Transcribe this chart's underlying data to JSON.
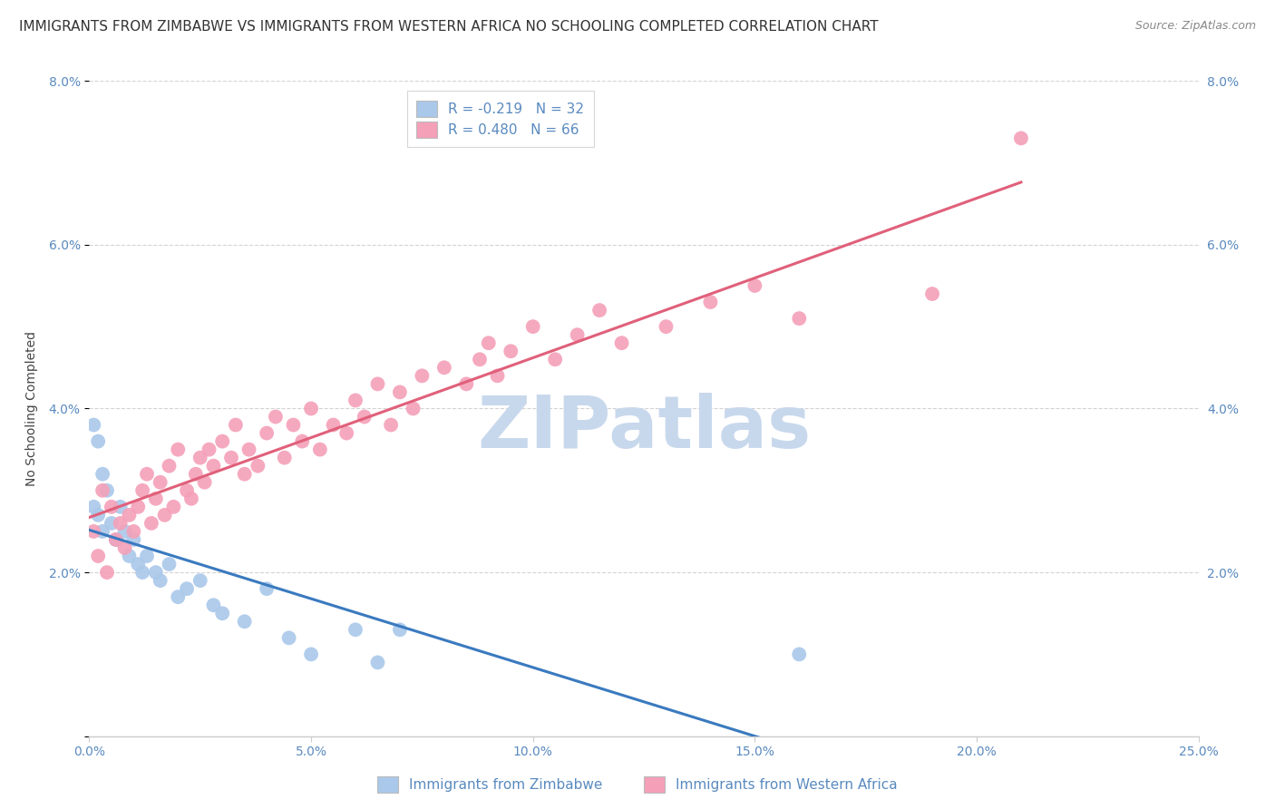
{
  "title": "IMMIGRANTS FROM ZIMBABWE VS IMMIGRANTS FROM WESTERN AFRICA NO SCHOOLING COMPLETED CORRELATION CHART",
  "source": "Source: ZipAtlas.com",
  "ylabel": "No Schooling Completed",
  "xlim": [
    0.0,
    0.25
  ],
  "ylim": [
    0.0,
    0.08
  ],
  "xticks": [
    0.0,
    0.05,
    0.1,
    0.15,
    0.2,
    0.25
  ],
  "yticks": [
    0.0,
    0.02,
    0.04,
    0.06,
    0.08
  ],
  "xtick_labels": [
    "0.0%",
    "5.0%",
    "10.0%",
    "15.0%",
    "20.0%",
    "25.0%"
  ],
  "ytick_labels": [
    "",
    "2.0%",
    "4.0%",
    "6.0%",
    "8.0%"
  ],
  "series": [
    {
      "label": "Immigrants from Zimbabwe",
      "R": -0.219,
      "N": 32,
      "color": "#aac8ea",
      "line_color": "#3a7abf",
      "line_dash": "solid",
      "line_end_dash": true,
      "x": [
        0.001,
        0.002,
        0.003,
        0.004,
        0.005,
        0.006,
        0.007,
        0.008,
        0.009,
        0.01,
        0.011,
        0.012,
        0.013,
        0.015,
        0.016,
        0.018,
        0.02,
        0.022,
        0.025,
        0.028,
        0.03,
        0.035,
        0.04,
        0.045,
        0.05,
        0.06,
        0.065,
        0.07,
        0.001,
        0.002,
        0.003,
        0.16
      ],
      "y": [
        0.028,
        0.027,
        0.025,
        0.03,
        0.026,
        0.024,
        0.028,
        0.025,
        0.022,
        0.024,
        0.021,
        0.02,
        0.022,
        0.02,
        0.019,
        0.021,
        0.017,
        0.018,
        0.019,
        0.016,
        0.015,
        0.014,
        0.018,
        0.012,
        0.01,
        0.013,
        0.009,
        0.013,
        0.038,
        0.036,
        0.032,
        0.01
      ]
    },
    {
      "label": "Immigrants from Western Africa",
      "R": 0.48,
      "N": 66,
      "color": "#f4a0b8",
      "line_color": "#e0607a",
      "x": [
        0.001,
        0.002,
        0.003,
        0.004,
        0.005,
        0.006,
        0.007,
        0.008,
        0.009,
        0.01,
        0.011,
        0.012,
        0.013,
        0.014,
        0.015,
        0.016,
        0.017,
        0.018,
        0.019,
        0.02,
        0.022,
        0.023,
        0.024,
        0.025,
        0.026,
        0.027,
        0.028,
        0.03,
        0.032,
        0.033,
        0.035,
        0.036,
        0.038,
        0.04,
        0.042,
        0.044,
        0.046,
        0.048,
        0.05,
        0.052,
        0.055,
        0.058,
        0.06,
        0.062,
        0.065,
        0.068,
        0.07,
        0.073,
        0.075,
        0.08,
        0.085,
        0.088,
        0.09,
        0.092,
        0.095,
        0.1,
        0.105,
        0.11,
        0.115,
        0.12,
        0.13,
        0.14,
        0.15,
        0.16,
        0.19,
        0.21
      ],
      "y": [
        0.025,
        0.022,
        0.03,
        0.02,
        0.028,
        0.024,
        0.026,
        0.023,
        0.027,
        0.025,
        0.028,
        0.03,
        0.032,
        0.026,
        0.029,
        0.031,
        0.027,
        0.033,
        0.028,
        0.035,
        0.03,
        0.029,
        0.032,
        0.034,
        0.031,
        0.035,
        0.033,
        0.036,
        0.034,
        0.038,
        0.032,
        0.035,
        0.033,
        0.037,
        0.039,
        0.034,
        0.038,
        0.036,
        0.04,
        0.035,
        0.038,
        0.037,
        0.041,
        0.039,
        0.043,
        0.038,
        0.042,
        0.04,
        0.044,
        0.045,
        0.043,
        0.046,
        0.048,
        0.044,
        0.047,
        0.05,
        0.046,
        0.049,
        0.052,
        0.048,
        0.05,
        0.053,
        0.055,
        0.051,
        0.054,
        0.073
      ]
    }
  ],
  "watermark": "ZIPatlas",
  "watermark_color": "#c8d8ec",
  "background_color": "#ffffff",
  "grid_color": "#cccccc",
  "title_fontsize": 11,
  "axis_fontsize": 10,
  "tick_fontsize": 10,
  "tick_color": "#5a8abf",
  "legend_fontsize": 11
}
